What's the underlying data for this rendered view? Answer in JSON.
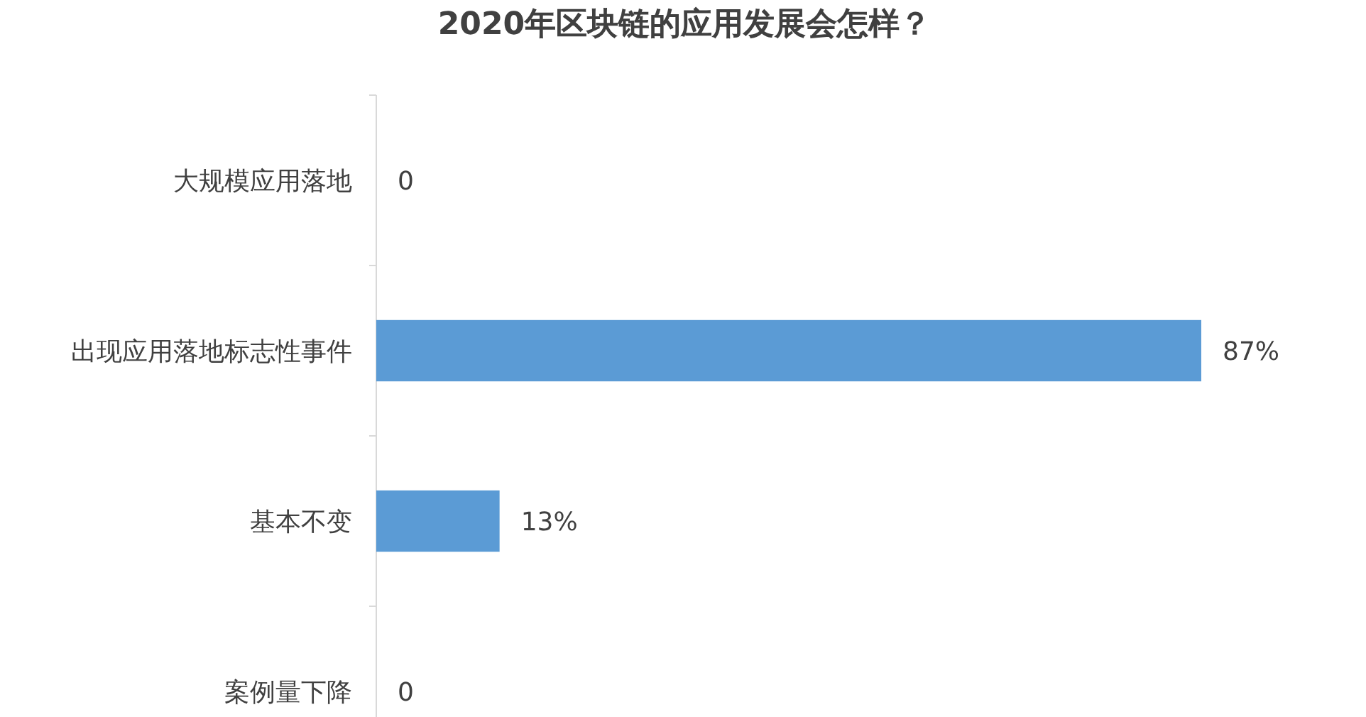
{
  "chart_data": {
    "type": "bar",
    "orientation": "horizontal",
    "title": "2020年区块链的应用发展会怎样？",
    "categories": [
      "大规模应用落地",
      "出现应用落地标志性事件",
      "基本不变",
      "案例量下降"
    ],
    "values": [
      0,
      87,
      13,
      0
    ],
    "value_labels": [
      "0",
      "87%",
      "13%",
      "0"
    ],
    "color": "#5b9bd5"
  }
}
